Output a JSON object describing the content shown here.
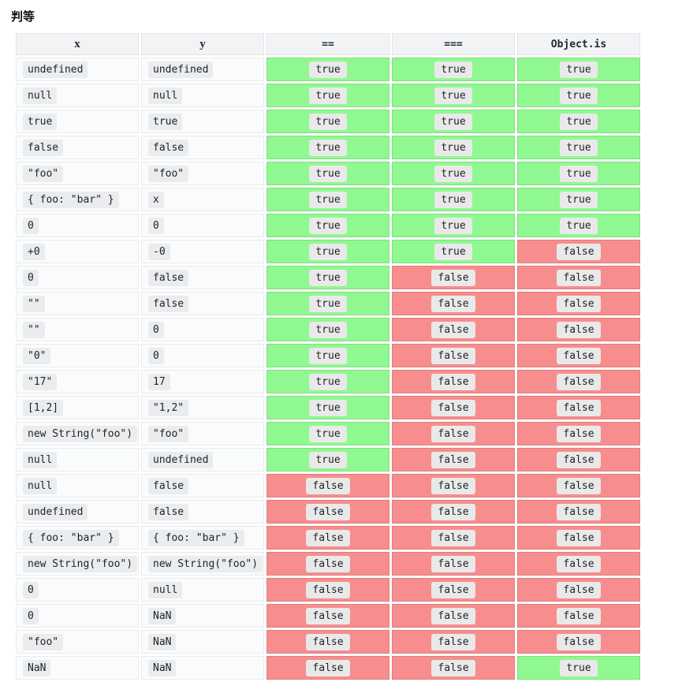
{
  "page": {
    "title": "判等"
  },
  "colors": {
    "true_bg": "#90f890",
    "false_bg": "#f88d8d",
    "header_bg": "#f1f3f5",
    "value_cell_bg": "#fafbfc",
    "badge_bg": "#eaecee"
  },
  "labels": {
    "true": "true",
    "false": "false"
  },
  "table": {
    "columns": [
      "x",
      "y",
      "==",
      "===",
      "Object.is"
    ],
    "rows": [
      {
        "x": "undefined",
        "y": "undefined",
        "eq": true,
        "seq": true,
        "ois": true
      },
      {
        "x": "null",
        "y": "null",
        "eq": true,
        "seq": true,
        "ois": true
      },
      {
        "x": "true",
        "y": "true",
        "eq": true,
        "seq": true,
        "ois": true
      },
      {
        "x": "false",
        "y": "false",
        "eq": true,
        "seq": true,
        "ois": true
      },
      {
        "x": "\"foo\"",
        "y": "\"foo\"",
        "eq": true,
        "seq": true,
        "ois": true
      },
      {
        "x": "{ foo: \"bar\" }",
        "y": "x",
        "eq": true,
        "seq": true,
        "ois": true
      },
      {
        "x": "0",
        "y": "0",
        "eq": true,
        "seq": true,
        "ois": true
      },
      {
        "x": "+0",
        "y": "-0",
        "eq": true,
        "seq": true,
        "ois": false
      },
      {
        "x": "0",
        "y": "false",
        "eq": true,
        "seq": false,
        "ois": false
      },
      {
        "x": "\"\"",
        "y": "false",
        "eq": true,
        "seq": false,
        "ois": false
      },
      {
        "x": "\"\"",
        "y": "0",
        "eq": true,
        "seq": false,
        "ois": false
      },
      {
        "x": "\"0\"",
        "y": "0",
        "eq": true,
        "seq": false,
        "ois": false
      },
      {
        "x": "\"17\"",
        "y": "17",
        "eq": true,
        "seq": false,
        "ois": false
      },
      {
        "x": "[1,2]",
        "y": "\"1,2\"",
        "eq": true,
        "seq": false,
        "ois": false
      },
      {
        "x": "new String(\"foo\")",
        "y": "\"foo\"",
        "eq": true,
        "seq": false,
        "ois": false
      },
      {
        "x": "null",
        "y": "undefined",
        "eq": true,
        "seq": false,
        "ois": false
      },
      {
        "x": "null",
        "y": "false",
        "eq": false,
        "seq": false,
        "ois": false
      },
      {
        "x": "undefined",
        "y": "false",
        "eq": false,
        "seq": false,
        "ois": false
      },
      {
        "x": "{ foo: \"bar\" }",
        "y": "{ foo: \"bar\" }",
        "eq": false,
        "seq": false,
        "ois": false
      },
      {
        "x": "new String(\"foo\")",
        "y": "new String(\"foo\")",
        "eq": false,
        "seq": false,
        "ois": false
      },
      {
        "x": "0",
        "y": "null",
        "eq": false,
        "seq": false,
        "ois": false
      },
      {
        "x": "0",
        "y": "NaN",
        "eq": false,
        "seq": false,
        "ois": false
      },
      {
        "x": "\"foo\"",
        "y": "NaN",
        "eq": false,
        "seq": false,
        "ois": false
      },
      {
        "x": "NaN",
        "y": "NaN",
        "eq": false,
        "seq": false,
        "ois": true
      }
    ]
  }
}
